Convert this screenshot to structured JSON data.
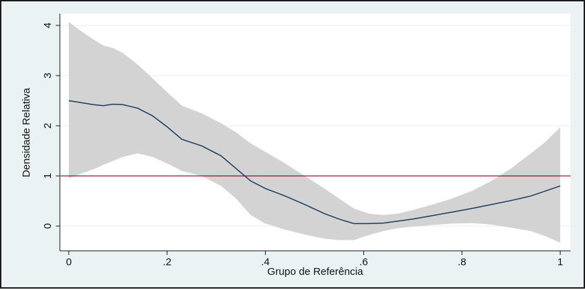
{
  "chart_data": {
    "type": "line",
    "title": "",
    "xlabel": "Grupo de Referência",
    "ylabel": "Densidade Relativa",
    "xlim": [
      0,
      1
    ],
    "ylim": [
      -0.4,
      4.1
    ],
    "x_ticks": [
      0,
      0.2,
      0.4,
      0.6,
      0.8,
      1
    ],
    "x_tick_labels": [
      "0",
      ".2",
      ".4",
      ".6",
      ".8",
      "1"
    ],
    "y_ticks": [
      0,
      1,
      2,
      3,
      4
    ],
    "y_tick_labels": [
      "0",
      "1",
      "2",
      "3",
      "4"
    ],
    "grid": true,
    "reference_line": {
      "y": 1,
      "color": "#8b1a2b"
    },
    "series": [
      {
        "type": "line",
        "color": "#1a3a5c",
        "x": [
          0,
          0.02,
          0.05,
          0.07,
          0.09,
          0.11,
          0.14,
          0.17,
          0.2,
          0.23,
          0.27,
          0.31,
          0.34,
          0.37,
          0.4,
          0.44,
          0.48,
          0.52,
          0.55,
          0.58,
          0.61,
          0.64,
          0.67,
          0.7,
          0.74,
          0.78,
          0.82,
          0.86,
          0.9,
          0.94,
          0.97,
          1.0
        ],
        "y": [
          2.5,
          2.47,
          2.42,
          2.4,
          2.43,
          2.42,
          2.35,
          2.2,
          1.98,
          1.73,
          1.6,
          1.4,
          1.15,
          0.9,
          0.75,
          0.6,
          0.43,
          0.25,
          0.14,
          0.05,
          0.05,
          0.06,
          0.1,
          0.14,
          0.21,
          0.28,
          0.35,
          0.43,
          0.51,
          0.6,
          0.7,
          0.8
        ]
      },
      {
        "type": "band",
        "color": "#d3d3d3",
        "x": [
          0,
          0.02,
          0.05,
          0.07,
          0.09,
          0.11,
          0.14,
          0.17,
          0.2,
          0.23,
          0.27,
          0.31,
          0.34,
          0.37,
          0.4,
          0.44,
          0.48,
          0.52,
          0.55,
          0.58,
          0.61,
          0.64,
          0.67,
          0.7,
          0.74,
          0.78,
          0.82,
          0.86,
          0.9,
          0.94,
          0.97,
          1.0
        ],
        "upper": [
          4.07,
          3.92,
          3.72,
          3.6,
          3.55,
          3.45,
          3.22,
          2.95,
          2.67,
          2.4,
          2.25,
          2.05,
          1.87,
          1.65,
          1.48,
          1.25,
          1.0,
          0.75,
          0.55,
          0.35,
          0.25,
          0.22,
          0.25,
          0.32,
          0.43,
          0.55,
          0.7,
          0.9,
          1.15,
          1.45,
          1.68,
          1.97
        ],
        "lower": [
          0.95,
          1.03,
          1.13,
          1.22,
          1.3,
          1.38,
          1.45,
          1.38,
          1.25,
          1.1,
          1.0,
          0.8,
          0.55,
          0.22,
          0.05,
          -0.07,
          -0.17,
          -0.25,
          -0.28,
          -0.28,
          -0.18,
          -0.1,
          -0.04,
          -0.01,
          0.02,
          0.05,
          0.06,
          0.03,
          -0.03,
          -0.1,
          -0.2,
          -0.33
        ]
      }
    ]
  }
}
